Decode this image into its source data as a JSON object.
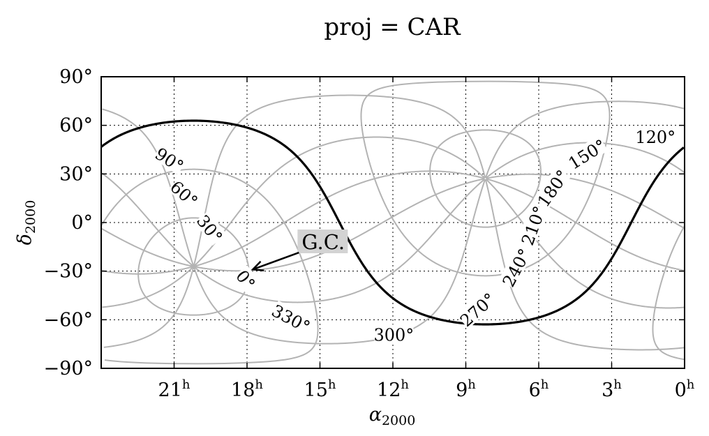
{
  "chart_data": {
    "type": "line",
    "title": "proj = CAR",
    "xlabel": {
      "base": "α",
      "sub": "2000"
    },
    "ylabel": {
      "base": "δ",
      "sub": "2000"
    },
    "xlim_hours": [
      24,
      0
    ],
    "ylim_deg": [
      -90,
      90
    ],
    "grid": true,
    "x_ticks": [
      {
        "hours": 21,
        "label": "21",
        "sup": "h"
      },
      {
        "hours": 18,
        "label": "18",
        "sup": "h"
      },
      {
        "hours": 15,
        "label": "15",
        "sup": "h"
      },
      {
        "hours": 12,
        "label": "12",
        "sup": "h"
      },
      {
        "hours": 9,
        "label": "9",
        "sup": "h"
      },
      {
        "hours": 6,
        "label": "6",
        "sup": "h"
      },
      {
        "hours": 3,
        "label": "3",
        "sup": "h"
      },
      {
        "hours": 0,
        "label": "0",
        "sup": "h"
      }
    ],
    "y_ticks": [
      {
        "deg": 90,
        "label": "90°"
      },
      {
        "deg": 60,
        "label": "60°"
      },
      {
        "deg": 30,
        "label": "30°"
      },
      {
        "deg": 0,
        "label": "0°"
      },
      {
        "deg": -30,
        "label": "−30°"
      },
      {
        "deg": -60,
        "label": "−60°"
      },
      {
        "deg": -90,
        "label": "−90°"
      }
    ],
    "galactic_poles": {
      "north": {
        "ra_hours": 12.857,
        "dec_deg": 27.13
      },
      "south": {
        "ra_hours": 0.857,
        "dec_deg": -27.13
      }
    },
    "galactic_longitudes_deg": [
      0,
      30,
      60,
      90,
      120,
      150,
      180,
      210,
      240,
      270,
      300,
      330
    ],
    "series": [
      {
        "kind": "galactic-equator",
        "color": "#000000"
      },
      {
        "kind": "galactic-meridians",
        "color": "#b3b3b3"
      },
      {
        "kind": "galactic-parallels",
        "latitudes_deg": [
          -60,
          -30,
          30,
          60
        ],
        "color": "#b3b3b3"
      }
    ],
    "curve_labels": [
      {
        "text": "0°",
        "ra_hours": 18.07,
        "dec_deg": -35.5,
        "rotate": 52
      },
      {
        "text": "30°",
        "ra_hours": 19.55,
        "dec_deg": -4.0,
        "rotate": 52
      },
      {
        "text": "60°",
        "ra_hours": 20.6,
        "dec_deg": 17.5,
        "rotate": 42
      },
      {
        "text": "90°",
        "ra_hours": 21.2,
        "dec_deg": 38.5,
        "rotate": 33
      },
      {
        "text": "120°",
        "ra_hours": 1.2,
        "dec_deg": 52.5,
        "rotate": 0
      },
      {
        "text": "150°",
        "ra_hours": 4.0,
        "dec_deg": 42.0,
        "rotate": -32
      },
      {
        "text": "180°",
        "ra_hours": 5.4,
        "dec_deg": 21.0,
        "rotate": -55
      },
      {
        "text": "210°",
        "ra_hours": 6.2,
        "dec_deg": -2.0,
        "rotate": -70
      },
      {
        "text": "240°",
        "ra_hours": 6.9,
        "dec_deg": -28.0,
        "rotate": -62
      },
      {
        "text": "270°",
        "ra_hours": 8.5,
        "dec_deg": -54.0,
        "rotate": -42
      },
      {
        "text": "300°",
        "ra_hours": 11.96,
        "dec_deg": -69.5,
        "rotate": 0
      },
      {
        "text": "330°",
        "ra_hours": 16.2,
        "dec_deg": -59.5,
        "rotate": 28
      }
    ],
    "annotations": [
      {
        "text": "G.C.",
        "ra_hours": 15.75,
        "dec_deg": -12.5,
        "arrow_to": {
          "ra_hours": 17.76,
          "dec_deg": -28.94
        },
        "box_color": "#d3d3d3"
      }
    ]
  }
}
